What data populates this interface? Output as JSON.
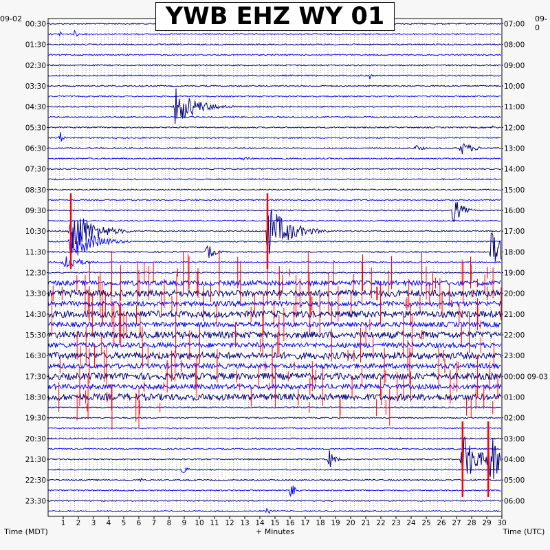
{
  "chart_data": {
    "type": "helicorder",
    "title": "YWB EHZ WY 01",
    "x_axis_label": "+ Minutes",
    "left_axis_label": "Time (MDT)",
    "right_axis_label": "Time (UTC)",
    "left_date": "09-02",
    "right_date": "09-0",
    "x_range": [
      0,
      30
    ],
    "x_ticks": [
      "1",
      "2",
      "3",
      "4",
      "5",
      "6",
      "7",
      "8",
      "9",
      "10",
      "11",
      "12",
      "13",
      "14",
      "15",
      "16",
      "17",
      "18",
      "19",
      "20",
      "21",
      "22",
      "23",
      "24",
      "25",
      "26",
      "27",
      "28",
      "29",
      "30"
    ],
    "rows_total": 48,
    "left_labels": [
      "00:30",
      "01:30",
      "02:30",
      "03:30",
      "04:30",
      "05:30",
      "06:30",
      "07:30",
      "08:30",
      "09:30",
      "10:30",
      "11:30",
      "12:30",
      "13:30",
      "14:30",
      "15:30",
      "16:30",
      "17:30",
      "18:30",
      "19:30",
      "20:30",
      "21:30",
      "22:30",
      "23:30"
    ],
    "right_labels": [
      "07:00",
      "08:00",
      "09:00",
      "10:00",
      "11:00",
      "12:00",
      "13:00",
      "14:00",
      "15:00",
      "16:00",
      "17:00",
      "18:00",
      "19:00",
      "20:00",
      "21:00",
      "22:00",
      "23:00",
      "00:00 09-03",
      "01:00",
      "02:00",
      "03:00",
      "04:00",
      "05:00",
      "06:00"
    ],
    "trace_colors": [
      "#00007a",
      "#0000ff"
    ],
    "clip_color": "#ff0000",
    "grid": "dotted",
    "high_noise_rows": [
      26,
      37
    ],
    "events": [
      {
        "row": 2,
        "minute": 0.8,
        "amplitude": 7,
        "duration": 0.3
      },
      {
        "row": 2,
        "minute": 1.8,
        "amplitude": 8,
        "duration": 0.3
      },
      {
        "row": 6,
        "minute": 21.3,
        "amplitude": 8,
        "duration": 0.2
      },
      {
        "row": 9,
        "minute": 8.4,
        "amplitude": 28,
        "duration": 4.0
      },
      {
        "row": 11,
        "minute": 29.4,
        "amplitude": 4,
        "duration": 0.2
      },
      {
        "row": 12,
        "minute": 0.8,
        "amplitude": 10,
        "duration": 0.5
      },
      {
        "row": 13,
        "minute": 24.3,
        "amplitude": 5,
        "duration": 1.5
      },
      {
        "row": 13,
        "minute": 27.3,
        "amplitude": 10,
        "duration": 2.5
      },
      {
        "row": 14,
        "minute": 12.8,
        "amplitude": 4,
        "duration": 2.5
      },
      {
        "row": 19,
        "minute": 26.8,
        "amplitude": 22,
        "duration": 1.5
      },
      {
        "row": 21,
        "minute": 1.5,
        "amplitude": 40,
        "duration": 4.0
      },
      {
        "row": 21,
        "minute": 14.5,
        "amplitude": 40,
        "duration": 4.0
      },
      {
        "row": 22,
        "minute": 1.5,
        "amplitude": 30,
        "duration": 4.0
      },
      {
        "row": 23,
        "minute": 10.5,
        "amplitude": 12,
        "duration": 1.5
      },
      {
        "row": 23,
        "minute": 29.3,
        "amplitude": 30,
        "duration": 2.5
      },
      {
        "row": 24,
        "minute": 1.0,
        "amplitude": 16,
        "duration": 2.5
      },
      {
        "row": 43,
        "minute": 18.6,
        "amplitude": 15,
        "duration": 1.0
      },
      {
        "row": 43,
        "minute": 27.4,
        "amplitude": 45,
        "duration": 2.5
      },
      {
        "row": 43,
        "minute": 29.1,
        "amplitude": 45,
        "duration": 2.5
      },
      {
        "row": 44,
        "minute": 8.9,
        "amplitude": 8,
        "duration": 0.8
      },
      {
        "row": 45,
        "minute": 6.1,
        "amplitude": 5,
        "duration": 0.3
      },
      {
        "row": 46,
        "minute": 16.0,
        "amplitude": 14,
        "duration": 1.0
      },
      {
        "row": 48,
        "minute": 14.5,
        "amplitude": 6,
        "duration": 0.5
      }
    ]
  }
}
